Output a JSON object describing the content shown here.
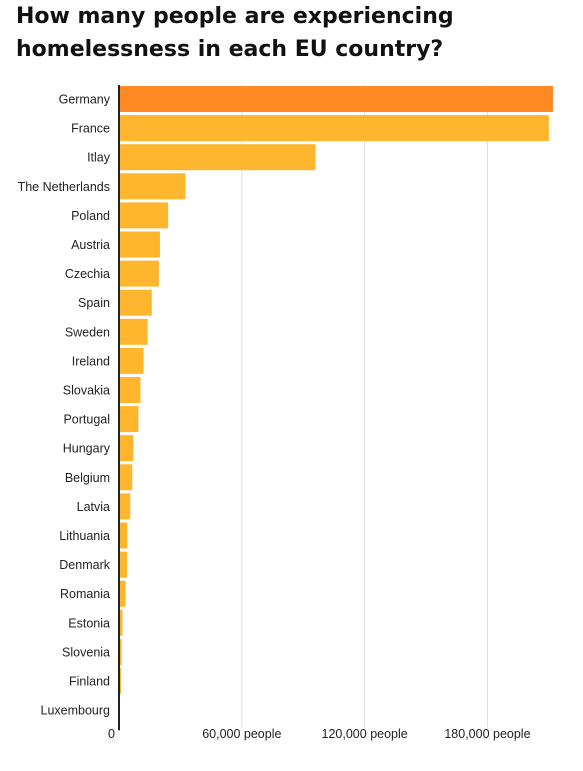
{
  "chart_data": {
    "type": "bar",
    "orientation": "horizontal",
    "title": "How many people are experiencing homelessness in each EU country?",
    "categories": [
      "Germany",
      "France",
      "Itlay",
      "The Netherlands",
      "Poland",
      "Austria",
      "Czechia",
      "Spain",
      "Sweden",
      "Ireland",
      "Slovakia",
      "Portugal",
      "Hungary",
      "Belgium",
      "Latvia",
      "Lithuania",
      "Denmark",
      "Romania",
      "Estonia",
      "Slovenia",
      "Finland",
      "Luxembourg"
    ],
    "values": [
      212000,
      210000,
      96000,
      32500,
      24000,
      20000,
      19500,
      16000,
      14000,
      12000,
      10500,
      9500,
      7000,
      6500,
      5500,
      4000,
      3900,
      3200,
      1700,
      1300,
      1000,
      500
    ],
    "xlim": [
      0,
      213000
    ],
    "xticks": [
      0,
      60000,
      120000,
      180000
    ],
    "xtick_labels": [
      "0",
      "60,000 people",
      "120,000 people",
      "180,000 people"
    ],
    "xlabel": "",
    "ylabel": "",
    "grid": true,
    "legend": "none",
    "colors": {
      "highlight": "#FF8A24",
      "bar": "#FFB52E",
      "grid": "#DDDDDD",
      "axis": "#222222"
    },
    "highlight_index": 0
  }
}
